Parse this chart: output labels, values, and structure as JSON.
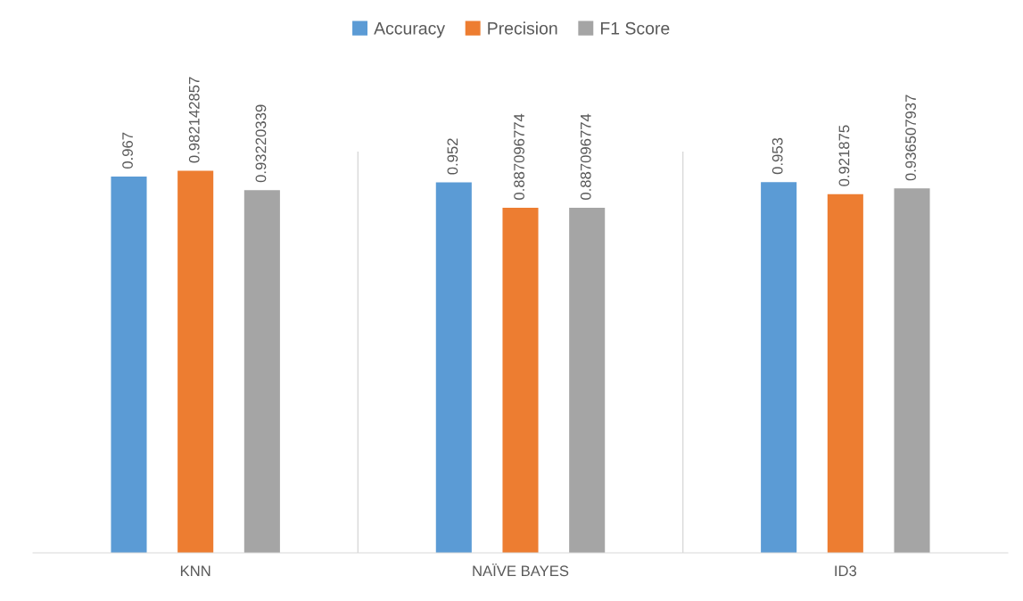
{
  "chart_data": {
    "type": "bar",
    "categories": [
      "KNN",
      "NAÏVE BAYES",
      "ID3"
    ],
    "series": [
      {
        "name": "Accuracy",
        "color": "#5b9bd5",
        "values": [
          0.967,
          0.952,
          0.953
        ],
        "value_labels": [
          "0.967",
          "0.952",
          "0.953"
        ]
      },
      {
        "name": "Precision",
        "color": "#ed7d31",
        "values": [
          0.982142857,
          0.887096774,
          0.921875
        ],
        "value_labels": [
          "0.982142857",
          "0.887096774",
          "0.921875"
        ]
      },
      {
        "name": "F1 Score",
        "color": "#a5a5a5",
        "values": [
          0.93220339,
          0.887096774,
          0.936507937
        ],
        "value_labels": [
          "0.93220339",
          "0.887096774",
          "0.936507937"
        ]
      }
    ],
    "tick_labels": "x",
    "legend": "top"
  }
}
